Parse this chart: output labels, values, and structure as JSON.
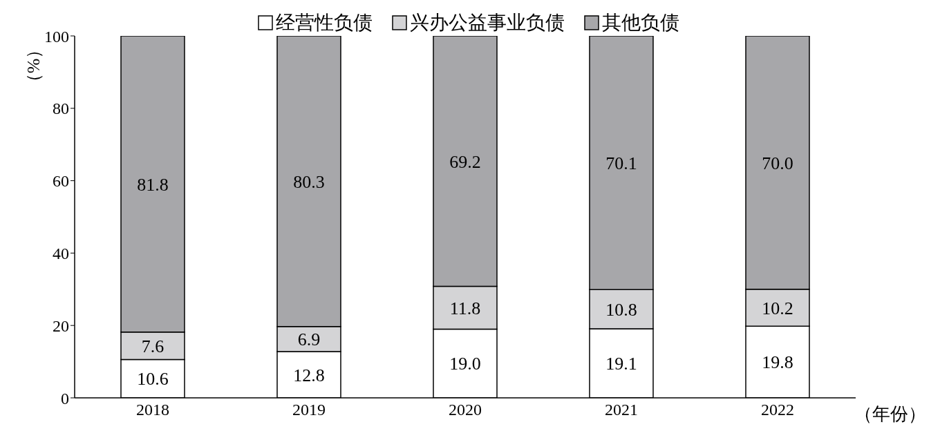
{
  "chart_data": {
    "type": "bar",
    "stacked": true,
    "xlabel": "（年份）",
    "ylabel": "（%）",
    "categories": [
      "2018",
      "2019",
      "2020",
      "2021",
      "2022"
    ],
    "series": [
      {
        "name": "经营性负债",
        "color": "#ffffff",
        "values": [
          10.6,
          12.8,
          19.0,
          19.1,
          19.8
        ],
        "value_labels": [
          "10.6",
          "12.8",
          "19.0",
          "19.1",
          "19.8"
        ]
      },
      {
        "name": "兴办公益事业负债",
        "color": "#d4d4d6",
        "values": [
          7.6,
          6.9,
          11.8,
          10.8,
          10.2
        ],
        "value_labels": [
          "7.6",
          "6.9",
          "11.8",
          "10.8",
          "10.2"
        ]
      },
      {
        "name": "其他负债",
        "color": "#a7a7aa",
        "values": [
          81.8,
          80.3,
          69.2,
          70.1,
          70.0
        ],
        "value_labels": [
          "81.8",
          "80.3",
          "69.2",
          "70.1",
          "70.0"
        ]
      }
    ],
    "ylim": [
      0,
      100
    ],
    "yticks": [
      0,
      20,
      40,
      60,
      80,
      100
    ],
    "grid": false,
    "legend": "top"
  }
}
